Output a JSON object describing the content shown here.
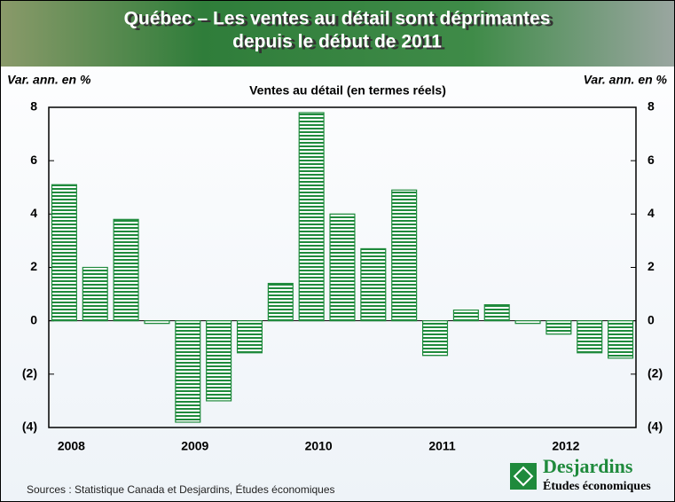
{
  "chart_data": {
    "type": "bar",
    "title_lines": [
      "Québec – Les ventes au détail sont déprimantes",
      "depuis le début de 2011"
    ],
    "subtitle": "Ventes au détail (en termes réels)",
    "ylabel": "Var. ann. en %",
    "y2label": "Var. ann. en %",
    "categories": [
      "2008",
      null,
      null,
      null,
      "2009",
      null,
      null,
      null,
      "2010",
      null,
      null,
      null,
      "2011",
      null,
      null,
      null,
      "2012",
      null,
      null
    ],
    "values": [
      5.1,
      2.0,
      3.8,
      -0.1,
      -3.8,
      -3.0,
      -1.2,
      1.4,
      7.8,
      4.0,
      2.7,
      4.9,
      -1.3,
      0.4,
      0.6,
      -0.1,
      -0.5,
      -1.2,
      -1.4
    ],
    "color": "#1f8a3c",
    "ylim": [
      -4,
      8
    ],
    "yticks": [
      {
        "value": -4,
        "label": "(4)"
      },
      {
        "value": -2,
        "label": "(2)"
      },
      0,
      2,
      4,
      6,
      8
    ],
    "y2lim": [
      -4,
      8
    ],
    "y2ticks": [
      {
        "value": -4,
        "label": "(4)"
      },
      {
        "value": -2,
        "label": "(2)"
      },
      0,
      2,
      4,
      6,
      8
    ],
    "source": "Sources : Statistique Canada et Desjardins, Études économiques",
    "logo_name": "Desjardins",
    "logo_sub": "Études économiques"
  }
}
